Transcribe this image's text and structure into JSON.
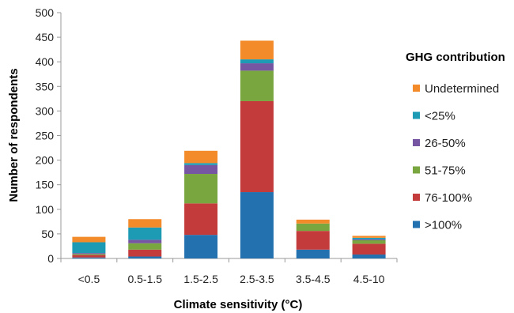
{
  "chart_data": {
    "type": "bar",
    "stacked": true,
    "categories": [
      "<0.5",
      "0.5-1.5",
      "1.5-2.5",
      "2.5-3.5",
      "3.5-4.5",
      "4.5-10"
    ],
    "series": [
      {
        "name": ">100%",
        "color": "#2471b0",
        "values": [
          2,
          4,
          48,
          135,
          18,
          8
        ]
      },
      {
        "name": "76-100%",
        "color": "#c43b3b",
        "values": [
          5,
          14,
          64,
          185,
          38,
          22
        ]
      },
      {
        "name": "51-75%",
        "color": "#7aa640",
        "values": [
          2,
          13,
          60,
          62,
          15,
          7
        ]
      },
      {
        "name": "26-50%",
        "color": "#7655a2",
        "values": [
          2,
          7,
          18,
          15,
          0,
          2
        ]
      },
      {
        "name": "<25%",
        "color": "#1d9bb5",
        "values": [
          22,
          25,
          4,
          8,
          0,
          3
        ]
      },
      {
        "name": "Undetermined",
        "color": "#f38b2b",
        "values": [
          11,
          17,
          25,
          38,
          8,
          4
        ]
      }
    ],
    "xlabel": "Climate sensitivity (°C)",
    "ylabel": "Number of respondents",
    "ylim": [
      0,
      500
    ],
    "yticks": [
      0,
      50,
      100,
      150,
      200,
      250,
      300,
      350,
      400,
      450,
      500
    ],
    "grid": false,
    "legend": {
      "title": "GHG contribution",
      "position": "right",
      "order": [
        "Undetermined",
        "<25%",
        "26-50%",
        "51-75%",
        "76-100%",
        ">100%"
      ]
    }
  }
}
